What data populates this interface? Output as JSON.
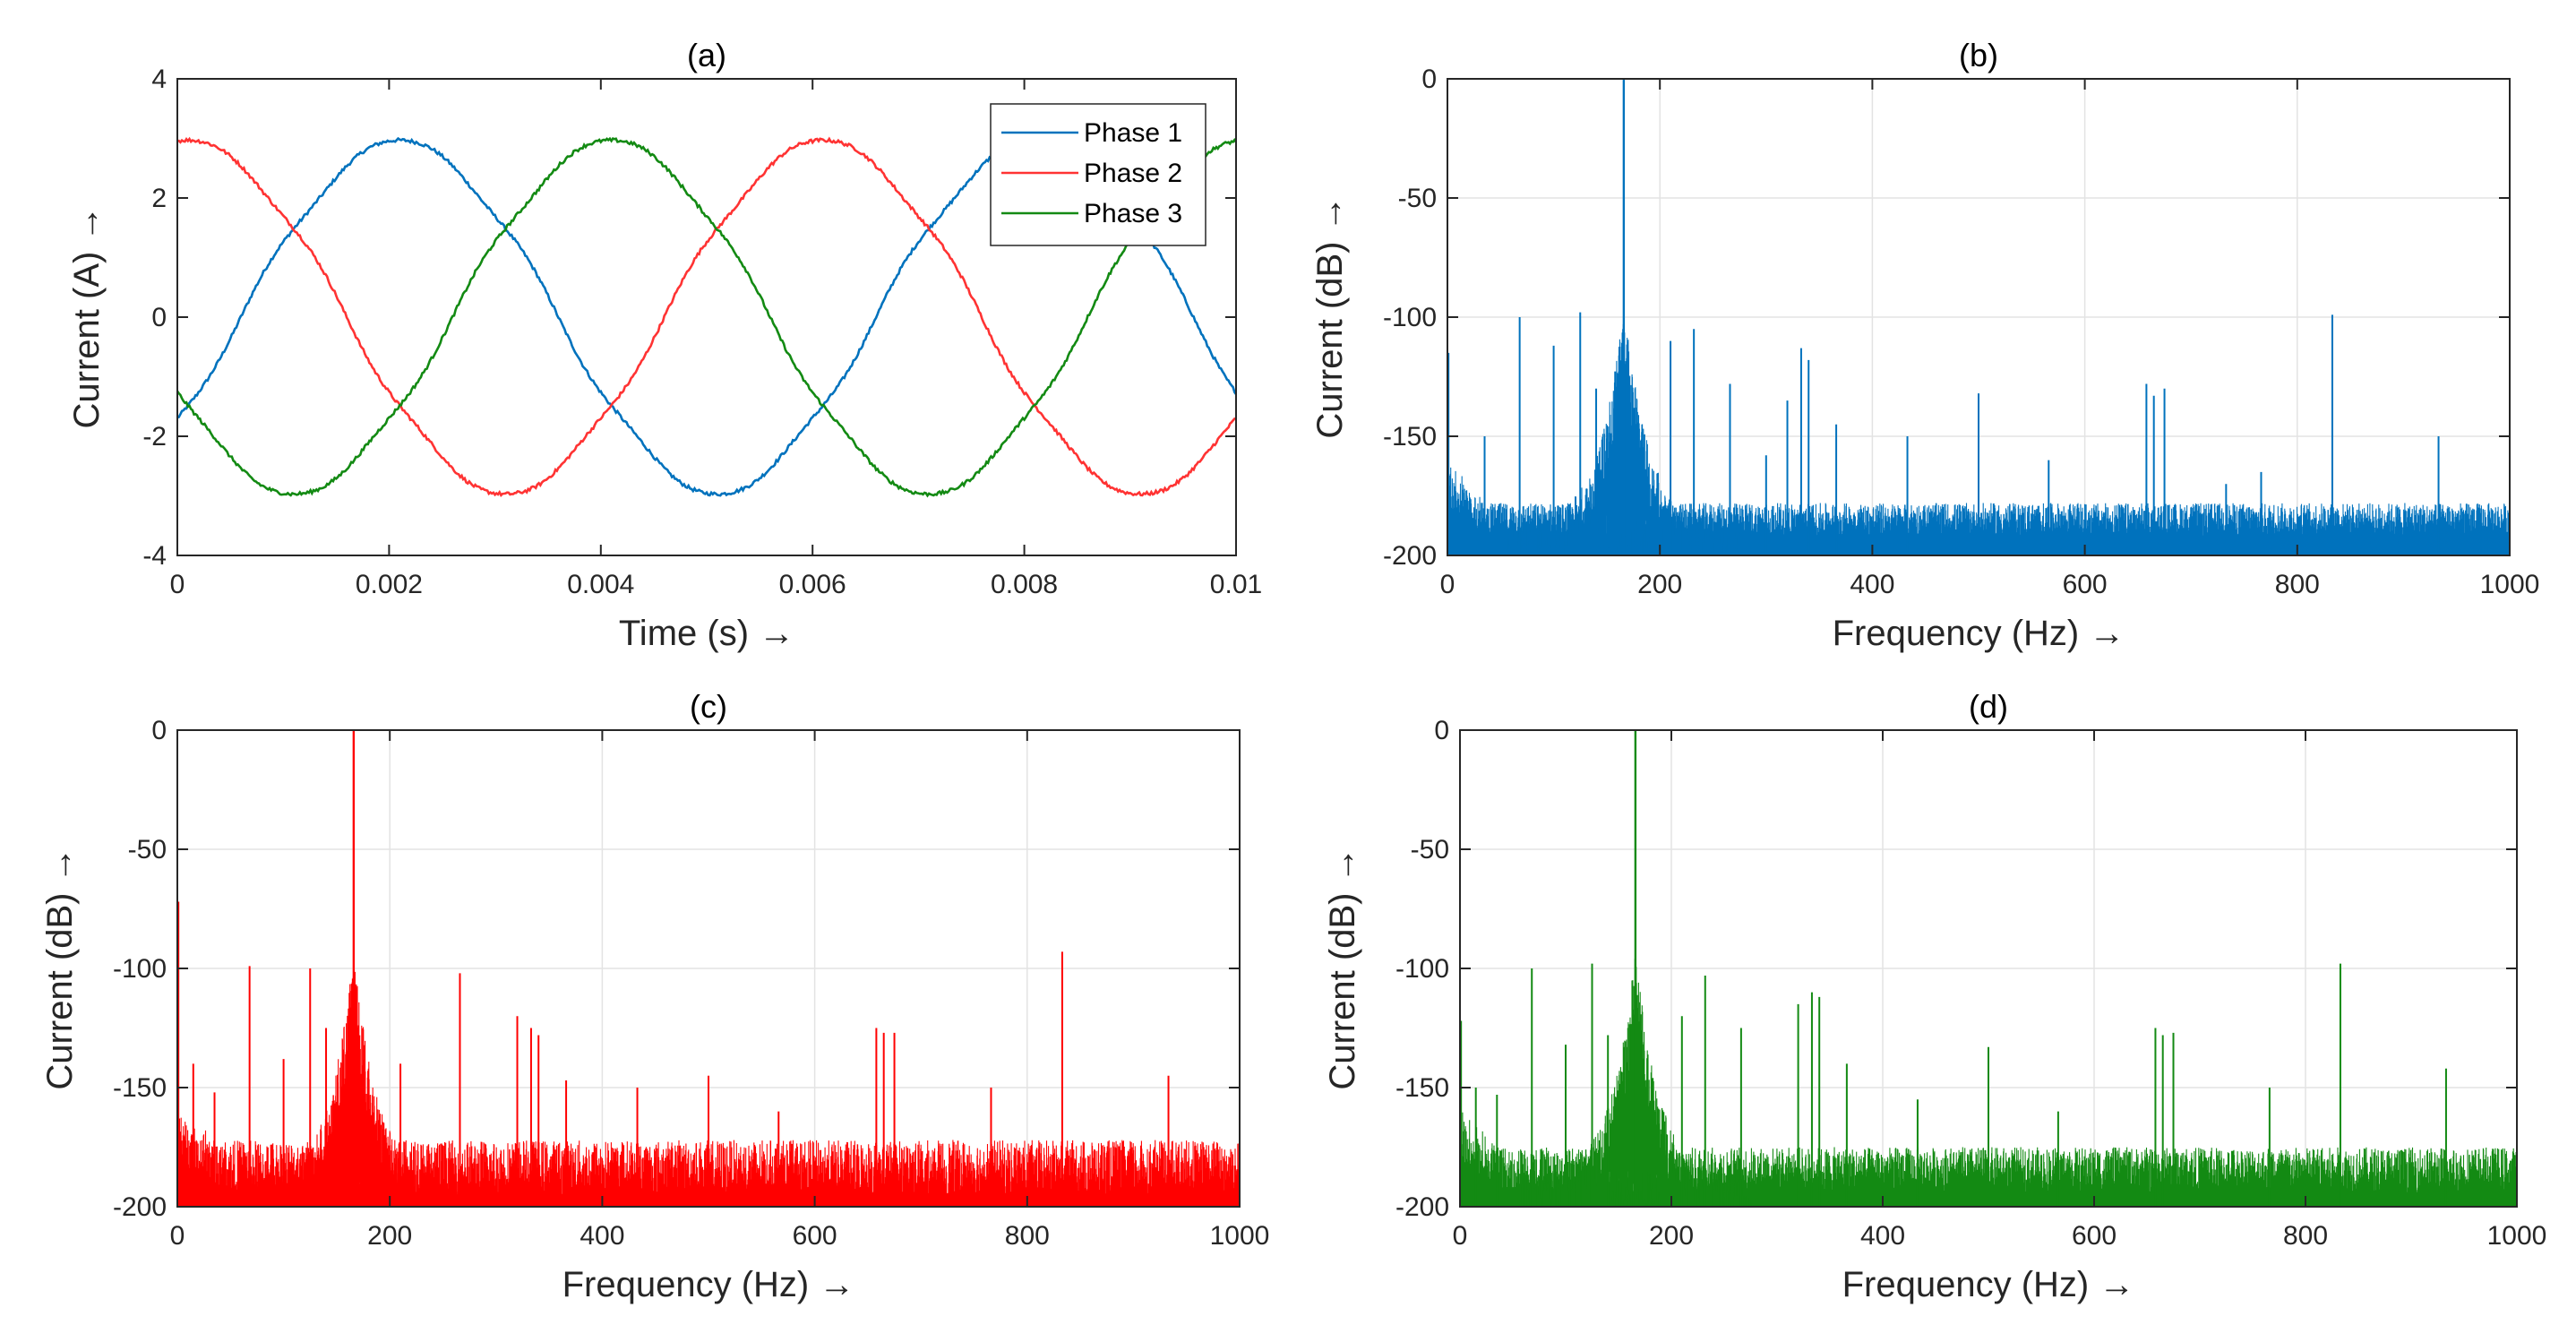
{
  "chart_data": [
    {
      "id": "a",
      "type": "line",
      "title": "(a)",
      "xlabel": "Time (s) →",
      "ylabel": "Current (A) →",
      "xlim": [
        0,
        0.01
      ],
      "ylim": [
        -4,
        4
      ],
      "xticks": [
        0,
        0.002,
        0.004,
        0.006,
        0.008,
        0.01
      ],
      "xtick_labels": [
        "0",
        "0.002",
        "0.004",
        "0.006",
        "0.008",
        "0.01"
      ],
      "yticks": [
        -4,
        -2,
        0,
        2,
        4
      ],
      "ytick_labels": [
        "-4",
        "-2",
        "0",
        "2",
        "4"
      ],
      "grid": false,
      "legend_position": "top-right",
      "frequency_hz": 166.7,
      "amplitude": 2.95,
      "series": [
        {
          "name": "Phase 1",
          "color": "#0072BD",
          "phase_deg": -36
        },
        {
          "name": "Phase 2",
          "color": "#FF3333",
          "phase_deg": 84
        },
        {
          "name": "Phase 3",
          "color": "#138A13",
          "phase_deg": 204
        }
      ]
    },
    {
      "id": "b",
      "type": "line",
      "title": "(b)",
      "xlabel": "Frequency (Hz) →",
      "ylabel": "Current (dB) →",
      "xlim": [
        0,
        1000
      ],
      "ylim": [
        -200,
        0
      ],
      "xticks": [
        0,
        200,
        400,
        600,
        800,
        1000
      ],
      "xtick_labels": [
        "0",
        "200",
        "400",
        "600",
        "800",
        "1000"
      ],
      "yticks": [
        -200,
        -150,
        -100,
        -50,
        0
      ],
      "ytick_labels": [
        "-200",
        "-150",
        "-100",
        "-50",
        "0"
      ],
      "grid": true,
      "color": "#0072BD",
      "fundamental": {
        "f": 166,
        "db": 0
      },
      "noise_floor_db": [
        -192,
        -178
      ],
      "peaks": [
        {
          "f": 1,
          "db": -115
        },
        {
          "f": 35,
          "db": -150
        },
        {
          "f": 68,
          "db": -100
        },
        {
          "f": 100,
          "db": -112
        },
        {
          "f": 125,
          "db": -98
        },
        {
          "f": 140,
          "db": -130
        },
        {
          "f": 210,
          "db": -110
        },
        {
          "f": 232,
          "db": -105
        },
        {
          "f": 266,
          "db": -128
        },
        {
          "f": 300,
          "db": -158
        },
        {
          "f": 320,
          "db": -135
        },
        {
          "f": 333,
          "db": -113
        },
        {
          "f": 340,
          "db": -118
        },
        {
          "f": 366,
          "db": -145
        },
        {
          "f": 433,
          "db": -150
        },
        {
          "f": 500,
          "db": -132
        },
        {
          "f": 566,
          "db": -160
        },
        {
          "f": 658,
          "db": -128
        },
        {
          "f": 665,
          "db": -133
        },
        {
          "f": 675,
          "db": -130
        },
        {
          "f": 733,
          "db": -170
        },
        {
          "f": 766,
          "db": -165
        },
        {
          "f": 833,
          "db": -99
        },
        {
          "f": 933,
          "db": -150
        },
        {
          "f": 1000,
          "db": -165
        }
      ]
    },
    {
      "id": "c",
      "type": "line",
      "title": "(c)",
      "xlabel": "Frequency (Hz) →",
      "ylabel": "Current (dB) →",
      "xlim": [
        0,
        1000
      ],
      "ylim": [
        -200,
        0
      ],
      "xticks": [
        0,
        200,
        400,
        600,
        800,
        1000
      ],
      "xtick_labels": [
        "0",
        "200",
        "400",
        "600",
        "800",
        "1000"
      ],
      "yticks": [
        -200,
        -150,
        -100,
        -50,
        0
      ],
      "ytick_labels": [
        "-200",
        "-150",
        "-100",
        "-50",
        "0"
      ],
      "grid": true,
      "color": "#FF0000",
      "fundamental": {
        "f": 166,
        "db": 0
      },
      "noise_floor_db": [
        -195,
        -172
      ],
      "peaks": [
        {
          "f": 1,
          "db": -72
        },
        {
          "f": 15,
          "db": -140
        },
        {
          "f": 35,
          "db": -152
        },
        {
          "f": 68,
          "db": -99
        },
        {
          "f": 100,
          "db": -138
        },
        {
          "f": 125,
          "db": -100
        },
        {
          "f": 140,
          "db": -125
        },
        {
          "f": 210,
          "db": -140
        },
        {
          "f": 266,
          "db": -102
        },
        {
          "f": 320,
          "db": -120
        },
        {
          "f": 333,
          "db": -125
        },
        {
          "f": 340,
          "db": -128
        },
        {
          "f": 366,
          "db": -147
        },
        {
          "f": 433,
          "db": -150
        },
        {
          "f": 500,
          "db": -145
        },
        {
          "f": 566,
          "db": -160
        },
        {
          "f": 658,
          "db": -125
        },
        {
          "f": 665,
          "db": -127
        },
        {
          "f": 675,
          "db": -127
        },
        {
          "f": 766,
          "db": -150
        },
        {
          "f": 833,
          "db": -93
        },
        {
          "f": 933,
          "db": -145
        },
        {
          "f": 1000,
          "db": -145
        }
      ]
    },
    {
      "id": "d",
      "type": "line",
      "title": "(d)",
      "xlabel": "Frequency (Hz) →",
      "ylabel": "Current (dB) →",
      "xlim": [
        0,
        1000
      ],
      "ylim": [
        -200,
        0
      ],
      "xticks": [
        0,
        200,
        400,
        600,
        800,
        1000
      ],
      "xtick_labels": [
        "0",
        "200",
        "400",
        "600",
        "800",
        "1000"
      ],
      "yticks": [
        -200,
        -150,
        -100,
        -50,
        0
      ],
      "ytick_labels": [
        "-200",
        "-150",
        "-100",
        "-50",
        "0"
      ],
      "grid": true,
      "color": "#138A13",
      "fundamental": {
        "f": 166,
        "db": 0
      },
      "noise_floor_db": [
        -194,
        -175
      ],
      "peaks": [
        {
          "f": 1,
          "db": -122
        },
        {
          "f": 15,
          "db": -150
        },
        {
          "f": 35,
          "db": -153
        },
        {
          "f": 68,
          "db": -100
        },
        {
          "f": 100,
          "db": -132
        },
        {
          "f": 125,
          "db": -98
        },
        {
          "f": 140,
          "db": -128
        },
        {
          "f": 210,
          "db": -120
        },
        {
          "f": 232,
          "db": -103
        },
        {
          "f": 266,
          "db": -125
        },
        {
          "f": 320,
          "db": -115
        },
        {
          "f": 333,
          "db": -110
        },
        {
          "f": 340,
          "db": -112
        },
        {
          "f": 366,
          "db": -140
        },
        {
          "f": 433,
          "db": -155
        },
        {
          "f": 500,
          "db": -133
        },
        {
          "f": 566,
          "db": -160
        },
        {
          "f": 658,
          "db": -125
        },
        {
          "f": 665,
          "db": -128
        },
        {
          "f": 675,
          "db": -127
        },
        {
          "f": 766,
          "db": -150
        },
        {
          "f": 833,
          "db": -98
        },
        {
          "f": 933,
          "db": -142
        },
        {
          "f": 1000,
          "db": -150
        }
      ]
    }
  ]
}
